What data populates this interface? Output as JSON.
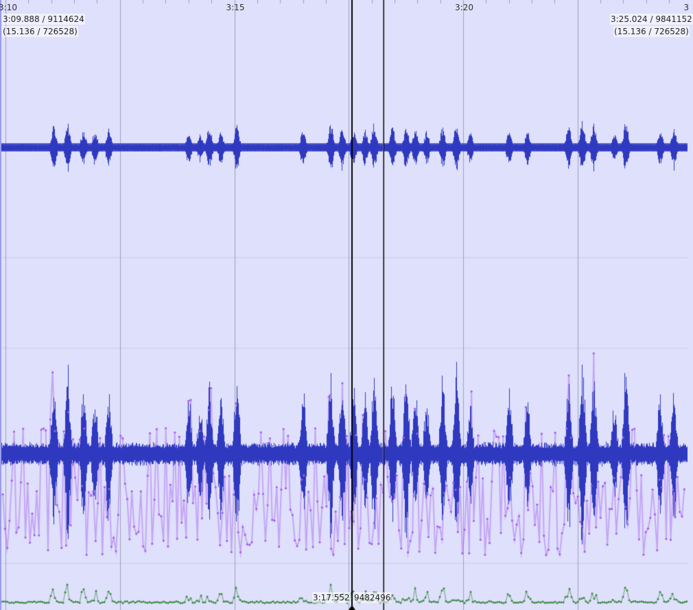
{
  "timeline": {
    "ticks": [
      {
        "label": "3:10",
        "t": 190
      },
      {
        "label": "3:15",
        "t": 195
      },
      {
        "label": "3:20",
        "t": 200
      },
      {
        "label": "3",
        "t": 205
      }
    ]
  },
  "view_start": {
    "time": "3:09.888 / 9114624",
    "scale": "(15.136 / 726528)"
  },
  "view_end": {
    "time": "3:25.024 / 9841152",
    "scale": "(15.136 / 726528)"
  },
  "cursor": {
    "label_time": "3:17.552",
    "label_sample": "9482496",
    "t": 197.552
  },
  "selection_end": {
    "t": 198.26
  },
  "colors": {
    "background": "#dfe0fb",
    "waveform": "#2f39c0",
    "purple_series": "#a55ef0",
    "green_series": "#3f8a4a",
    "grid": "#9d9eb8",
    "cursor": "#000000"
  },
  "waveform": {
    "bursts_seconds": [
      191.05,
      191.35,
      191.7,
      191.95,
      192.25,
      194.0,
      194.25,
      194.45,
      194.7,
      195.05,
      196.5,
      197.1,
      197.35,
      197.6,
      197.85,
      198.05,
      198.45,
      198.75,
      198.95,
      199.2,
      199.55,
      199.85,
      200.15,
      201.0,
      201.4,
      202.3,
      202.6,
      202.85,
      203.3,
      203.55,
      204.3,
      204.6
    ]
  }
}
